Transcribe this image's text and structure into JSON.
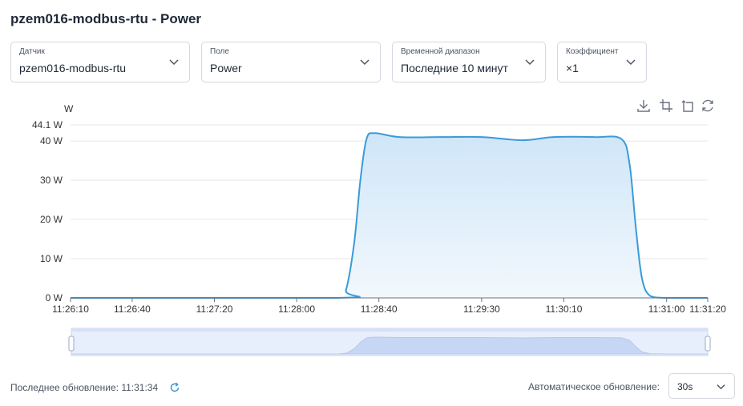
{
  "header": {
    "title": "pzem016-modbus-rtu - Power"
  },
  "filters": {
    "sensor": {
      "label": "Датчик",
      "value": "pzem016-modbus-rtu"
    },
    "field": {
      "label": "Поле",
      "value": "Power"
    },
    "range": {
      "label": "Временной диапазон",
      "value": "Последние 10 минут"
    },
    "coef": {
      "label": "Коэффициент",
      "value": "×1"
    }
  },
  "toolbar": {
    "icons": [
      "download-icon",
      "zoom-select-icon",
      "zoom-reset-icon",
      "restore-icon"
    ]
  },
  "chart_data": {
    "type": "area",
    "unit": "W",
    "y_unit_label": "W",
    "ylim": [
      0,
      44.1
    ],
    "y_ticks": [
      0,
      10,
      20,
      30,
      40,
      44.1
    ],
    "y_tick_labels": [
      "0 W",
      "10 W",
      "20 W",
      "30 W",
      "40 W",
      "44.1 W"
    ],
    "x_ticks": [
      "11:26:10",
      "11:26:40",
      "11:27:20",
      "11:28:00",
      "11:28:40",
      "11:29:30",
      "11:30:10",
      "11:31:00",
      "11:31:20"
    ],
    "xlim": [
      "11:26:10",
      "11:31:20"
    ],
    "series": [
      {
        "points": [
          [
            "11:26:10",
            0
          ],
          [
            "11:28:20",
            0
          ],
          [
            "11:28:24",
            2
          ],
          [
            "11:28:28",
            14
          ],
          [
            "11:28:31",
            30
          ],
          [
            "11:28:34",
            40.5
          ],
          [
            "11:28:38",
            42
          ],
          [
            "11:28:50",
            41
          ],
          [
            "11:29:10",
            41
          ],
          [
            "11:29:30",
            41
          ],
          [
            "11:29:50",
            40.2
          ],
          [
            "11:30:05",
            41
          ],
          [
            "11:30:25",
            41
          ],
          [
            "11:30:38",
            40.5
          ],
          [
            "11:30:42",
            34
          ],
          [
            "11:30:45",
            18
          ],
          [
            "11:30:48",
            5
          ],
          [
            "11:30:52",
            0.5
          ],
          [
            "11:31:00",
            0
          ],
          [
            "11:31:20",
            0
          ]
        ]
      }
    ],
    "grid": true,
    "colors": {
      "line": "#3b9ad9",
      "fill_top": "#cfe6f8",
      "fill_bottom": "#f2f8fd"
    }
  },
  "footer": {
    "last_update": "Последнее обновление: 11:31:34",
    "auto_update_label": "Автоматическое обновление:",
    "auto_update_value": "30s"
  }
}
